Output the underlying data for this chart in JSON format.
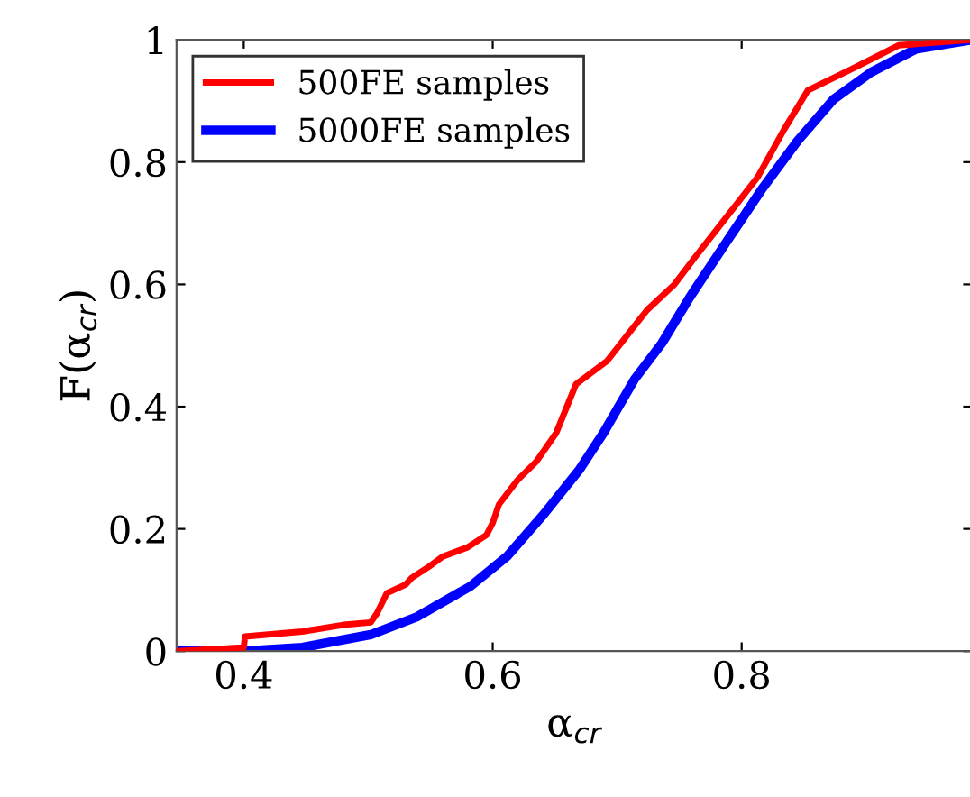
{
  "chart_data": {
    "type": "line",
    "xlabel": "α$_{cr}$",
    "ylabel": "F(α$_{cr}$)",
    "xlim": [
      0.346,
      0.985
    ],
    "ylim": [
      0,
      1
    ],
    "xticks": [
      0.4,
      0.6,
      0.8
    ],
    "yticks": [
      0,
      0.2,
      0.4,
      0.6,
      0.8,
      1
    ],
    "legend": "top left",
    "grid": false,
    "line_style": "solid",
    "marker": "none",
    "series": [
      {
        "name": "500FE samples",
        "color": "#ff0000",
        "x": [
          0.346,
          0.4,
          0.401,
          0.447,
          0.48,
          0.502,
          0.507,
          0.515,
          0.53,
          0.535,
          0.55,
          0.56,
          0.58,
          0.595,
          0.6,
          0.605,
          0.62,
          0.635,
          0.651,
          0.667,
          0.692,
          0.717,
          0.724,
          0.746,
          0.762,
          0.794,
          0.813,
          0.834,
          0.853,
          0.889,
          0.926,
          0.985
        ],
        "values": [
          0,
          0.006,
          0.024,
          0.032,
          0.043,
          0.047,
          0.062,
          0.095,
          0.109,
          0.12,
          0.14,
          0.155,
          0.17,
          0.19,
          0.21,
          0.24,
          0.28,
          0.31,
          0.357,
          0.437,
          0.475,
          0.54,
          0.558,
          0.6,
          0.643,
          0.726,
          0.776,
          0.853,
          0.917,
          0.953,
          0.991,
          1
        ]
      },
      {
        "name": "5000FE samples",
        "color": "#0000ff",
        "x": [
          0.346,
          0.4,
          0.447,
          0.502,
          0.539,
          0.582,
          0.612,
          0.641,
          0.67,
          0.689,
          0.714,
          0.736,
          0.758,
          0.787,
          0.816,
          0.845,
          0.874,
          0.904,
          0.94,
          0.985
        ],
        "values": [
          0,
          0,
          0.006,
          0.027,
          0.056,
          0.106,
          0.156,
          0.224,
          0.298,
          0.357,
          0.445,
          0.504,
          0.578,
          0.667,
          0.755,
          0.835,
          0.903,
          0.947,
          0.985,
          1
        ]
      }
    ]
  }
}
